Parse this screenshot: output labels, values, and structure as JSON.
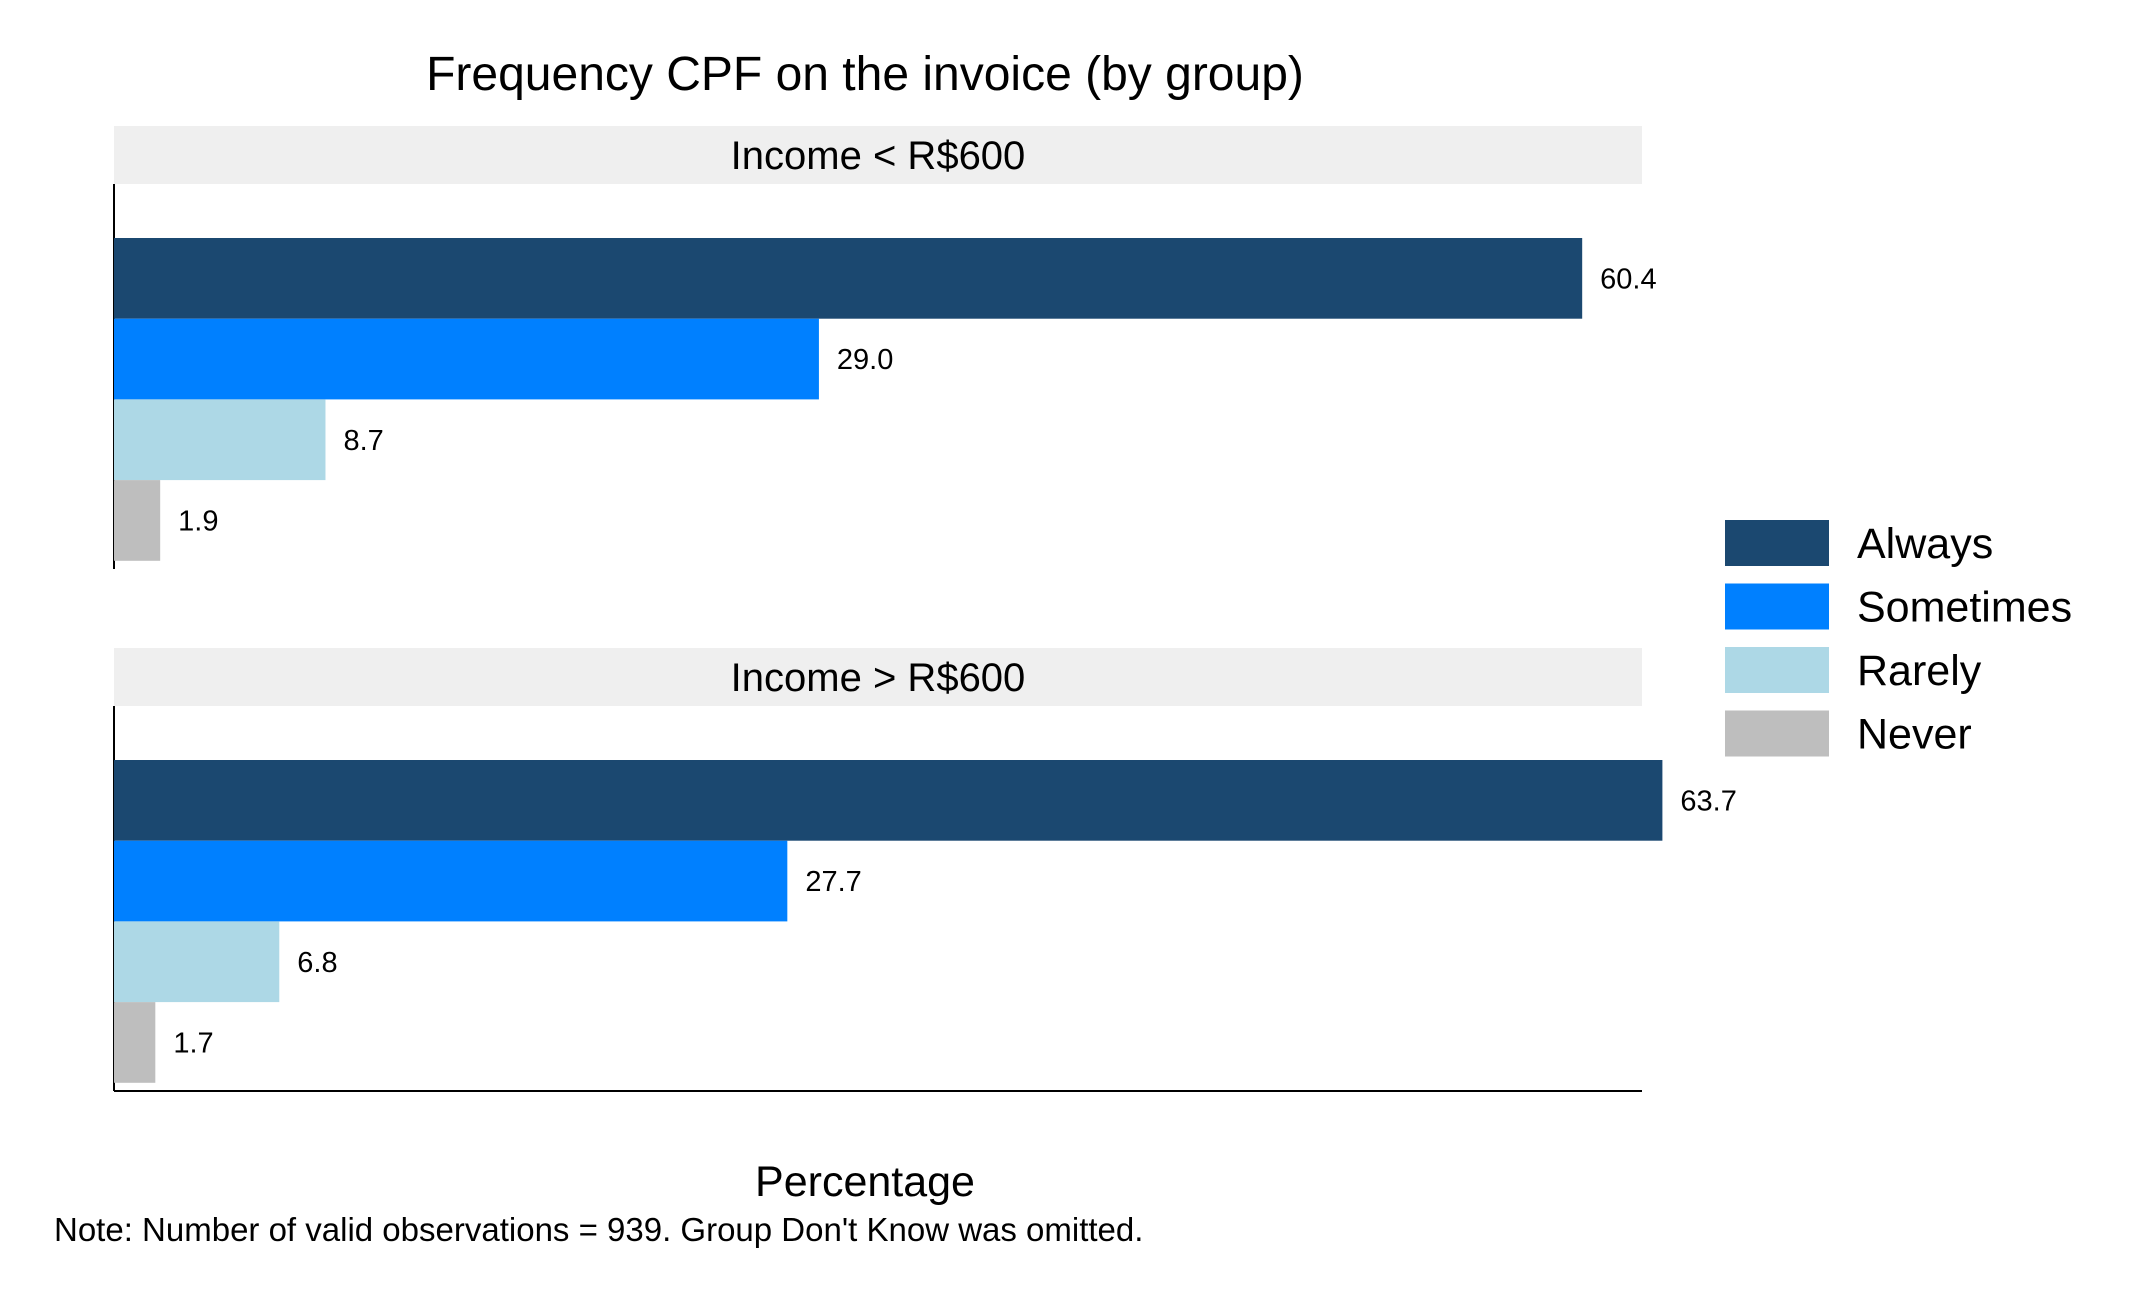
{
  "chart_data": {
    "type": "bar",
    "orientation": "horizontal",
    "title": "Frequency CPF on the invoice (by group)",
    "xlabel": "Percentage",
    "ylabel": "",
    "note": "Note: Number of valid observations = 939. Group Don't Know was omitted.",
    "xlim": [
      0,
      65
    ],
    "grid": false,
    "legend_position": "right",
    "value_format_decimals": 1,
    "categories": [
      "Always",
      "Sometimes",
      "Rarely",
      "Never"
    ],
    "colors": {
      "Always": "#1b4870",
      "Sometimes": "#0080ff",
      "Rarely": "#add8e6",
      "Never": "#bebebe"
    },
    "panels": [
      {
        "label": "Income < R$600",
        "values": [
          60.4,
          29.0,
          8.7,
          1.9
        ]
      },
      {
        "label": "Income > R$600",
        "values": [
          63.7,
          27.7,
          6.8,
          1.7
        ]
      }
    ]
  }
}
